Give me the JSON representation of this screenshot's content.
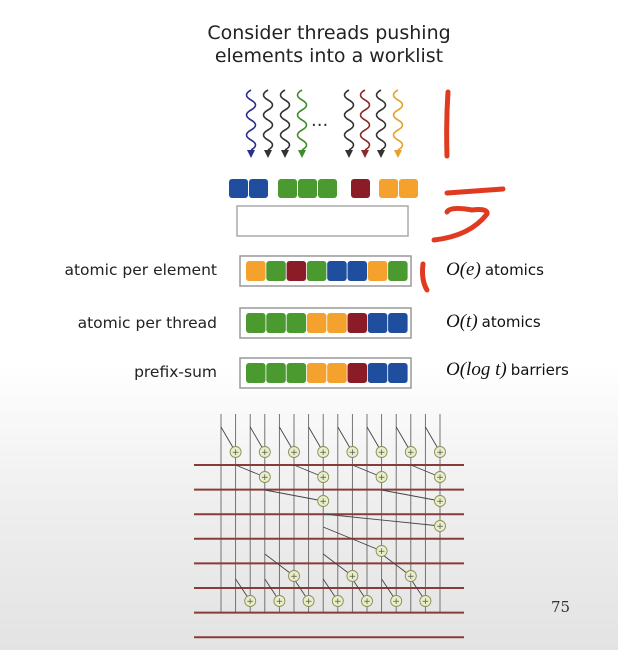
{
  "title_line1": "Consider threads pushing",
  "title_line2": "elements into a worklist",
  "thread_ellipsis": "...",
  "colors": {
    "blue": "#1f4e9e",
    "green": "#4a9a2f",
    "red": "#8b1c27",
    "orange": "#f4a12e",
    "annotation": "#e03a20",
    "thread_blue": "#2b2f8e",
    "thread_black": "#333333",
    "thread_green": "#3d8d2a",
    "thread_red": "#8b2a2a",
    "thread_orange": "#e3a22b",
    "scan_line": "#8b3a3a"
  },
  "threads": [
    "thread_blue",
    "thread_black",
    "thread_black",
    "thread_green",
    "thread_black",
    "thread_red",
    "thread_black",
    "thread_orange"
  ],
  "thread_groups": [
    [
      "blue",
      "blue"
    ],
    [
      "green",
      "green",
      "green"
    ],
    [
      "red"
    ],
    [
      "orange",
      "orange"
    ]
  ],
  "methods": [
    {
      "label": "atomic per element",
      "cells": [
        "orange",
        "green",
        "red",
        "green",
        "blue",
        "blue",
        "orange",
        "green"
      ],
      "complexity_math": "O(e)",
      "complexity_word": "atomics"
    },
    {
      "label": "atomic per thread",
      "cells": [
        "green",
        "green",
        "green",
        "orange",
        "orange",
        "red",
        "blue",
        "blue"
      ],
      "complexity_math": "O(t)",
      "complexity_word": "atomics"
    },
    {
      "label": "prefix-sum",
      "cells": [
        "green",
        "green",
        "green",
        "orange",
        "orange",
        "red",
        "blue",
        "blue"
      ],
      "complexity_math": "O(log t)",
      "complexity_word": "barriers"
    }
  ],
  "scan_network": {
    "columns": 16,
    "levels": 8,
    "plus_symbol": "+"
  },
  "slide_number": "75"
}
